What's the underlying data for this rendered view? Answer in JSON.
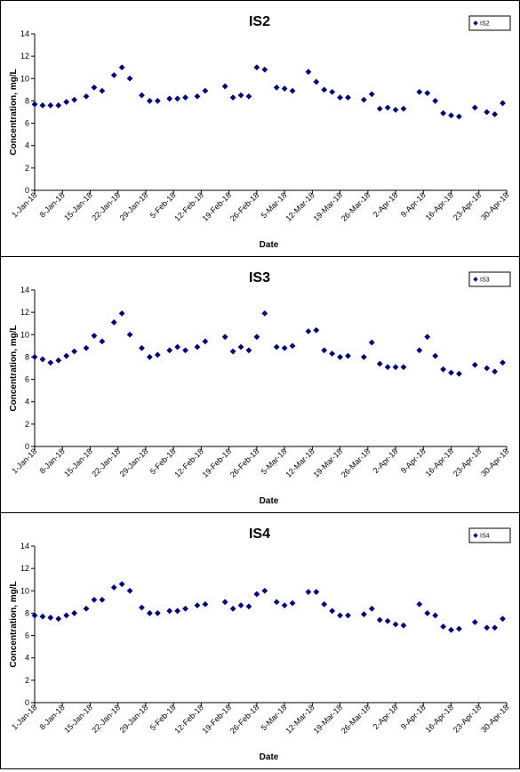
{
  "chart_data": [
    {
      "type": "scatter",
      "title": "IS2",
      "xlabel": "Date",
      "ylabel": "Concentration, mg/L",
      "ylim": [
        0,
        14
      ],
      "yticks": [
        "0",
        "2",
        "4",
        "6",
        "8",
        "10",
        "12",
        "14"
      ],
      "xlim": [
        "2018-01-01",
        "2018-04-30"
      ],
      "xticks": [
        "1-Jan-18",
        "8-Jan-18",
        "15-Jan-18",
        "22-Jan-18",
        "29-Jan-18",
        "5-Feb-18",
        "12-Feb-18",
        "19-Feb-18",
        "26-Feb-18",
        "5-Mar-18",
        "12-Mar-18",
        "19-Mar-18",
        "26-Mar-18",
        "2-Apr-18",
        "9-Apr-18",
        "16-Apr-18",
        "23-Apr-18",
        "30-Apr-18"
      ],
      "legend": "top-right",
      "marker_color": "#000080",
      "series": [
        {
          "name": "IS2",
          "x": [
            "2018-01-01",
            "2018-01-03",
            "2018-01-05",
            "2018-01-07",
            "2018-01-09",
            "2018-01-11",
            "2018-01-14",
            "2018-01-16",
            "2018-01-18",
            "2018-01-21",
            "2018-01-23",
            "2018-01-25",
            "2018-01-28",
            "2018-01-30",
            "2018-02-01",
            "2018-02-04",
            "2018-02-06",
            "2018-02-08",
            "2018-02-11",
            "2018-02-13",
            "2018-02-18",
            "2018-02-20",
            "2018-02-22",
            "2018-02-24",
            "2018-02-26",
            "2018-02-28",
            "2018-03-03",
            "2018-03-05",
            "2018-03-07",
            "2018-03-11",
            "2018-03-13",
            "2018-03-15",
            "2018-03-17",
            "2018-03-19",
            "2018-03-21",
            "2018-03-25",
            "2018-03-27",
            "2018-03-29",
            "2018-03-31",
            "2018-04-02",
            "2018-04-04",
            "2018-04-08",
            "2018-04-10",
            "2018-04-12",
            "2018-04-14",
            "2018-04-16",
            "2018-04-18",
            "2018-04-22",
            "2018-04-25",
            "2018-04-27",
            "2018-04-29"
          ],
          "y": [
            7.7,
            7.6,
            7.6,
            7.6,
            7.9,
            8.1,
            8.4,
            9.2,
            8.9,
            10.3,
            11.0,
            10.0,
            8.5,
            8.0,
            8.0,
            8.2,
            8.2,
            8.3,
            8.4,
            8.9,
            9.3,
            8.3,
            8.5,
            8.4,
            11.0,
            10.8,
            9.2,
            9.1,
            8.9,
            10.6,
            9.7,
            9.0,
            8.8,
            8.3,
            8.3,
            8.1,
            8.6,
            7.3,
            7.4,
            7.2,
            7.3,
            8.8,
            8.7,
            8.0,
            6.9,
            6.7,
            6.6,
            7.4,
            7.0,
            6.8,
            7.8
          ]
        }
      ]
    },
    {
      "type": "scatter",
      "title": "IS3",
      "xlabel": "Date",
      "ylabel": "Concentration, mg/L",
      "ylim": [
        0,
        14
      ],
      "yticks": [
        "0",
        "2",
        "4",
        "6",
        "8",
        "10",
        "12",
        "14"
      ],
      "xlim": [
        "2018-01-01",
        "2018-04-30"
      ],
      "xticks": [
        "1-Jan-18",
        "8-Jan-18",
        "15-Jan-18",
        "22-Jan-18",
        "29-Jan-18",
        "5-Feb-18",
        "12-Feb-18",
        "19-Feb-18",
        "26-Feb-18",
        "5-Mar-18",
        "12-Mar-18",
        "19-Mar-18",
        "26-Mar-18",
        "2-Apr-18",
        "9-Apr-18",
        "16-Apr-18",
        "23-Apr-18",
        "30-Apr-18"
      ],
      "legend": "top-right",
      "marker_color": "#000080",
      "series": [
        {
          "name": "IS3",
          "x": [
            "2018-01-01",
            "2018-01-03",
            "2018-01-05",
            "2018-01-07",
            "2018-01-09",
            "2018-01-11",
            "2018-01-14",
            "2018-01-16",
            "2018-01-18",
            "2018-01-21",
            "2018-01-23",
            "2018-01-25",
            "2018-01-28",
            "2018-01-30",
            "2018-02-01",
            "2018-02-04",
            "2018-02-06",
            "2018-02-08",
            "2018-02-11",
            "2018-02-13",
            "2018-02-18",
            "2018-02-20",
            "2018-02-22",
            "2018-02-24",
            "2018-02-26",
            "2018-02-28",
            "2018-03-03",
            "2018-03-05",
            "2018-03-07",
            "2018-03-11",
            "2018-03-13",
            "2018-03-15",
            "2018-03-17",
            "2018-03-19",
            "2018-03-21",
            "2018-03-25",
            "2018-03-27",
            "2018-03-29",
            "2018-03-31",
            "2018-04-02",
            "2018-04-04",
            "2018-04-08",
            "2018-04-10",
            "2018-04-12",
            "2018-04-14",
            "2018-04-16",
            "2018-04-18",
            "2018-04-22",
            "2018-04-25",
            "2018-04-27",
            "2018-04-29"
          ],
          "y": [
            8.0,
            7.8,
            7.5,
            7.7,
            8.1,
            8.5,
            8.8,
            9.9,
            9.4,
            11.1,
            11.9,
            10.0,
            8.8,
            8.0,
            8.2,
            8.6,
            8.9,
            8.6,
            8.9,
            9.4,
            9.8,
            8.5,
            8.9,
            8.6,
            9.8,
            11.9,
            8.9,
            8.8,
            9.0,
            10.3,
            10.4,
            8.6,
            8.3,
            8.0,
            8.1,
            8.0,
            9.3,
            7.4,
            7.1,
            7.1,
            7.1,
            8.6,
            9.8,
            8.1,
            6.9,
            6.6,
            6.5,
            7.3,
            7.0,
            6.7,
            7.5
          ]
        }
      ]
    },
    {
      "type": "scatter",
      "title": "IS4",
      "xlabel": "Date",
      "ylabel": "Concentration, mg/L",
      "ylim": [
        0,
        14
      ],
      "yticks": [
        "0",
        "2",
        "4",
        "6",
        "8",
        "10",
        "12",
        "14"
      ],
      "xlim": [
        "2018-01-01",
        "2018-04-30"
      ],
      "xticks": [
        "1-Jan-18",
        "8-Jan-18",
        "15-Jan-18",
        "22-Jan-18",
        "29-Jan-18",
        "5-Feb-18",
        "12-Feb-18",
        "19-Feb-18",
        "26-Feb-18",
        "5-Mar-18",
        "12-Mar-18",
        "19-Mar-18",
        "26-Mar-18",
        "2-Apr-18",
        "9-Apr-18",
        "16-Apr-18",
        "23-Apr-18",
        "30-Apr-18"
      ],
      "legend": "top-right",
      "marker_color": "#000080",
      "series": [
        {
          "name": "IS4",
          "x": [
            "2018-01-01",
            "2018-01-03",
            "2018-01-05",
            "2018-01-07",
            "2018-01-09",
            "2018-01-11",
            "2018-01-14",
            "2018-01-16",
            "2018-01-18",
            "2018-01-21",
            "2018-01-23",
            "2018-01-25",
            "2018-01-28",
            "2018-01-30",
            "2018-02-01",
            "2018-02-04",
            "2018-02-06",
            "2018-02-08",
            "2018-02-11",
            "2018-02-13",
            "2018-02-18",
            "2018-02-20",
            "2018-02-22",
            "2018-02-24",
            "2018-02-26",
            "2018-02-28",
            "2018-03-03",
            "2018-03-05",
            "2018-03-07",
            "2018-03-11",
            "2018-03-13",
            "2018-03-15",
            "2018-03-17",
            "2018-03-19",
            "2018-03-21",
            "2018-03-25",
            "2018-03-27",
            "2018-03-29",
            "2018-03-31",
            "2018-04-02",
            "2018-04-04",
            "2018-04-08",
            "2018-04-10",
            "2018-04-12",
            "2018-04-14",
            "2018-04-16",
            "2018-04-18",
            "2018-04-22",
            "2018-04-25",
            "2018-04-27",
            "2018-04-29"
          ],
          "y": [
            7.8,
            7.7,
            7.6,
            7.5,
            7.8,
            8.0,
            8.4,
            9.2,
            9.2,
            10.3,
            10.6,
            10.0,
            8.5,
            8.0,
            8.0,
            8.2,
            8.2,
            8.4,
            8.7,
            8.8,
            9.0,
            8.4,
            8.7,
            8.6,
            9.7,
            10.0,
            9.0,
            8.7,
            8.9,
            9.9,
            9.9,
            8.8,
            8.2,
            7.8,
            7.8,
            7.9,
            8.4,
            7.4,
            7.3,
            7.0,
            6.9,
            8.8,
            8.0,
            7.8,
            6.8,
            6.5,
            6.6,
            7.2,
            6.7,
            6.7,
            7.5
          ]
        }
      ]
    }
  ]
}
